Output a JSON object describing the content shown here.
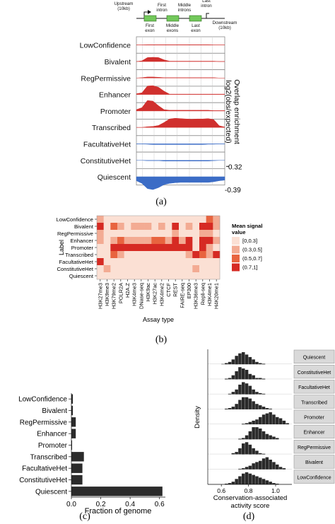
{
  "panel_labels": {
    "a": "(a)",
    "b": "(b)",
    "c": "(c)",
    "d": "(d)"
  },
  "gene_diagram": {
    "upstream": "Upstream\n(10kb)",
    "first_intron": "First\nintron",
    "middle_introns": "Middle\nintrons",
    "last_intron": "Last\nintron",
    "first_exon": "First\nexon",
    "middle_exons": "Middle\nexons",
    "last_exon": "Last\nexon",
    "downstream": "Downstream\n(10kb)"
  },
  "chart_data": [
    {
      "type": "area",
      "panel": "(a)",
      "ylabel": "Overlap enrichment\nlog2(obs/expected)",
      "scale_labels": {
        "top": "0.32",
        "bottom": "-0.39"
      },
      "ylim": [
        -0.39,
        0.32
      ],
      "regions": [
        "Upstream (10kb)",
        "First exon",
        "First intron",
        "Middle exons",
        "Middle introns",
        "Last exon",
        "Last intron",
        "Downstream (10kb)"
      ],
      "series": [
        {
          "name": "LowConfidence",
          "color": "#d0302e",
          "values": [
            0,
            0,
            0.01,
            0.01,
            0.01,
            0.01,
            0.01,
            0.01,
            0.01,
            0.01,
            0.01,
            0.01,
            0.01,
            0.01,
            0,
            0,
            0
          ]
        },
        {
          "name": "Bivalent",
          "color": "#d0302e",
          "values": [
            0,
            0.02,
            0.12,
            0.13,
            0.12,
            0.05,
            0.01,
            0.01,
            0.01,
            0.01,
            0.01,
            0.01,
            0.01,
            0.01,
            0.01,
            0,
            0
          ]
        },
        {
          "name": "RegPermissive",
          "color": "#d0302e",
          "values": [
            0,
            0.01,
            0.03,
            0.03,
            0.02,
            0.01,
            0.01,
            0.01,
            0.01,
            0.01,
            0.01,
            0.01,
            0.01,
            0.01,
            0.01,
            0,
            0
          ]
        },
        {
          "name": "Enhancer",
          "color": "#d0302e",
          "values": [
            0.02,
            0.05,
            0.26,
            0.27,
            0.22,
            0.1,
            0.01,
            0.01,
            0.01,
            0.01,
            0.01,
            0.01,
            0.01,
            0.01,
            0.01,
            0.01,
            0.01
          ]
        },
        {
          "name": "Promoter",
          "color": "#d0302e",
          "values": [
            0.04,
            0.1,
            0.32,
            0.3,
            0.16,
            0.04,
            0.02,
            0.02,
            0.02,
            0.02,
            0.02,
            0.02,
            0.02,
            0.02,
            0.01,
            0.01,
            0.01
          ]
        },
        {
          "name": "Transcribed",
          "color": "#d0302e",
          "values": [
            0,
            0,
            0.02,
            0.03,
            0.06,
            0.15,
            0.26,
            0.28,
            0.27,
            0.26,
            0.25,
            0.26,
            0.26,
            0.27,
            0.24,
            0.05,
            0.01
          ]
        },
        {
          "name": "FacultativeHet",
          "color": "#3b6cc6",
          "values": [
            0,
            0,
            -0.01,
            -0.02,
            -0.02,
            -0.02,
            -0.02,
            -0.02,
            -0.02,
            -0.02,
            -0.02,
            -0.02,
            -0.02,
            -0.01,
            -0.01,
            0,
            0
          ]
        },
        {
          "name": "ConstitutiveHet",
          "color": "#3b6cc6",
          "values": [
            0,
            0,
            -0.01,
            -0.01,
            -0.01,
            -0.02,
            -0.02,
            -0.02,
            -0.02,
            -0.02,
            -0.02,
            -0.02,
            -0.02,
            -0.02,
            -0.01,
            0,
            0
          ]
        },
        {
          "name": "Quiescent",
          "color": "#3b6cc6",
          "values": [
            -0.12,
            -0.2,
            -0.36,
            -0.39,
            -0.33,
            -0.24,
            -0.2,
            -0.18,
            -0.17,
            -0.17,
            -0.17,
            -0.17,
            -0.17,
            -0.17,
            -0.15,
            -0.12,
            -0.1
          ]
        }
      ]
    },
    {
      "type": "heatmap",
      "panel": "(b)",
      "xlabel": "Assay type",
      "ylabel": "Label",
      "legend_title": "Mean signal\nvalue",
      "legend_bins": [
        "[0,0.3]",
        "(0.3,0.5]",
        "(0.5,0.7]",
        "(0.7,1]"
      ],
      "legend_colors": [
        "#fbe0d4",
        "#f3ab93",
        "#e8643f",
        "#d62a23"
      ],
      "x": [
        "H3K27me3",
        "H3K9me3",
        "H3K79me2",
        "POLR2A",
        "H2A.Z",
        "H3K4me3",
        "DNase-seq",
        "H3K9ac",
        "H3K27ac",
        "H3K4me2",
        "CTCF",
        "REST",
        "FAIRE-seq",
        "EP300",
        "H3K36me3",
        "Repli-seq",
        "H3K4me1",
        "H4K20me1"
      ],
      "y": [
        "LowConfidence",
        "Bivalent",
        "RegPermissive",
        "Enhancer",
        "Promoter",
        "Transcribed",
        "FacultativeHet",
        "ConstitutiveHet",
        "Quiescent"
      ],
      "bins": [
        [
          1,
          0,
          0,
          0,
          0,
          0,
          0,
          0,
          0,
          0,
          0,
          0,
          0,
          0,
          0,
          0,
          2,
          1
        ],
        [
          3,
          0,
          2,
          1,
          0,
          1,
          1,
          1,
          0,
          1,
          0,
          3,
          0,
          1,
          0,
          3,
          3,
          1
        ],
        [
          1,
          0,
          0,
          0,
          0,
          0,
          0,
          0,
          0,
          0,
          0,
          1,
          0,
          0,
          0,
          1,
          1,
          0
        ],
        [
          1,
          0,
          1,
          2,
          1,
          1,
          1,
          1,
          2,
          2,
          1,
          3,
          1,
          3,
          0,
          3,
          3,
          1
        ],
        [
          0,
          0,
          3,
          3,
          3,
          3,
          3,
          3,
          3,
          3,
          3,
          3,
          3,
          3,
          0,
          3,
          1,
          0
        ],
        [
          0,
          0,
          2,
          1,
          0,
          0,
          0,
          0,
          0,
          0,
          0,
          0,
          0,
          1,
          3,
          2,
          1,
          3
        ],
        [
          3,
          0,
          0,
          0,
          0,
          0,
          0,
          0,
          0,
          0,
          0,
          0,
          0,
          0,
          0,
          0,
          0,
          0
        ],
        [
          0,
          1,
          0,
          0,
          0,
          0,
          0,
          0,
          0,
          0,
          0,
          0,
          0,
          0,
          1,
          0,
          0,
          0
        ],
        [
          0,
          0,
          0,
          0,
          0,
          0,
          0,
          0,
          0,
          0,
          0,
          0,
          0,
          0,
          0,
          0,
          0,
          0
        ]
      ]
    },
    {
      "type": "bar",
      "panel": "(c)",
      "orientation": "horizontal",
      "xlabel": "Fraction of genome",
      "categories": [
        "LowConfidence",
        "Bivalent",
        "RegPermissive",
        "Enhancer",
        "Promoter",
        "Transcribed",
        "FacultativeHet",
        "ConstitutiveHet",
        "Quiescent"
      ],
      "values": [
        0.01,
        0.01,
        0.03,
        0.03,
        0.005,
        0.085,
        0.075,
        0.075,
        0.62
      ],
      "xticks": [
        "0.0",
        "0.2",
        "0.4",
        "0.6"
      ],
      "xlim": [
        0,
        0.64
      ]
    },
    {
      "type": "bar",
      "panel": "(d)",
      "subtype": "faceted histogram",
      "xlabel": "Conservation-associated\nactivity score",
      "ylabel": "Density",
      "xticks": [
        "0.6",
        "0.8",
        "1.0"
      ],
      "xlim": [
        0.5,
        1.12
      ],
      "bin_starts": [
        0.55,
        0.575,
        0.6,
        0.625,
        0.65,
        0.675,
        0.7,
        0.725,
        0.75,
        0.775,
        0.8,
        0.825,
        0.85,
        0.875,
        0.9,
        0.925,
        0.95,
        0.975,
        1.0,
        1.025,
        1.05,
        1.075
      ],
      "series": [
        {
          "name": "Quiescent",
          "values": [
            0,
            0,
            0.3,
            1,
            2,
            4,
            7,
            9,
            10,
            8,
            6,
            4,
            2,
            1,
            0.5,
            0,
            0,
            0,
            0,
            0,
            0,
            0
          ]
        },
        {
          "name": "ConstitutiveHet",
          "values": [
            0,
            0,
            0,
            0.5,
            1,
            3,
            6,
            9,
            8,
            7,
            4,
            3,
            1,
            1,
            0.5,
            0,
            0,
            0,
            0,
            0,
            0,
            0
          ]
        },
        {
          "name": "FacultativeHet",
          "values": [
            0,
            0,
            0,
            0,
            0.5,
            2,
            4,
            8,
            10,
            9,
            7,
            4,
            2,
            1,
            0.5,
            0,
            0,
            0,
            0,
            0,
            0,
            0
          ]
        },
        {
          "name": "Transcribed",
          "values": [
            0,
            0,
            0,
            0.5,
            1,
            2,
            4,
            7,
            9,
            9,
            8,
            6,
            4,
            3,
            2,
            1,
            0.5,
            0,
            0,
            0,
            0,
            0
          ]
        },
        {
          "name": "Promoter",
          "values": [
            0,
            0,
            0,
            0,
            0,
            0,
            0,
            0,
            0.5,
            1,
            2,
            3,
            4,
            6,
            8,
            9,
            10,
            8,
            6,
            5,
            3,
            1
          ]
        },
        {
          "name": "Enhancer",
          "values": [
            0,
            0,
            0,
            0,
            0,
            0,
            0,
            0.5,
            1,
            3,
            6,
            9,
            9,
            8,
            6,
            4,
            3,
            2,
            1,
            0,
            0,
            0
          ]
        },
        {
          "name": "RegPermissive",
          "values": [
            0,
            0,
            0,
            0,
            0,
            1,
            2,
            5,
            9,
            10,
            8,
            5,
            3,
            1,
            0.5,
            0,
            0,
            0,
            0,
            0,
            0,
            0
          ]
        },
        {
          "name": "Bivalent",
          "values": [
            0,
            0,
            0,
            0,
            0,
            0,
            0,
            0.5,
            1,
            2,
            3,
            5,
            6,
            7,
            9,
            10,
            8,
            6,
            4,
            2,
            1,
            0
          ]
        },
        {
          "name": "LowConfidence",
          "values": [
            0,
            0,
            0,
            0.5,
            1,
            2,
            4,
            6,
            8,
            9,
            8,
            7,
            6,
            5,
            4,
            3,
            2,
            1,
            0.5,
            0,
            0,
            0
          ]
        }
      ]
    }
  ]
}
